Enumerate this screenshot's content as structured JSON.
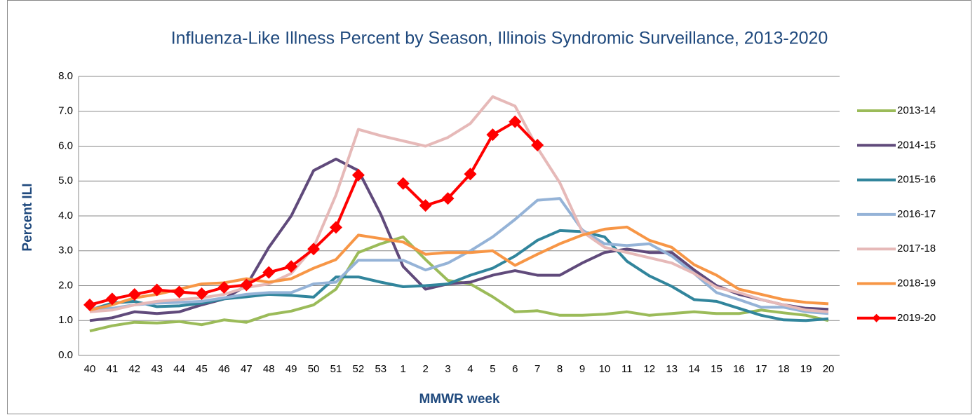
{
  "chart_data": {
    "type": "line",
    "title": "Influenza-Like Illness Percent by Season, Illinois Syndromic Surveillance, 2013-2020",
    "x_label": "MMWR week",
    "y_label": "Percent ILI",
    "categories": [
      "40",
      "41",
      "42",
      "43",
      "44",
      "45",
      "46",
      "47",
      "48",
      "49",
      "50",
      "51",
      "52",
      "53",
      "1",
      "2",
      "3",
      "4",
      "5",
      "6",
      "7",
      "8",
      "9",
      "10",
      "11",
      "12",
      "13",
      "14",
      "15",
      "16",
      "17",
      "18",
      "19",
      "20"
    ],
    "ylim": [
      0,
      8
    ],
    "yticks": [
      {
        "value": 0,
        "label": "0.0"
      },
      {
        "value": 1,
        "label": "1.0"
      },
      {
        "value": 2,
        "label": "2.0"
      },
      {
        "value": 3,
        "label": "3.0"
      },
      {
        "value": 4,
        "label": "4.0"
      },
      {
        "value": 5,
        "label": "5.0"
      },
      {
        "value": 6,
        "label": "6.0"
      },
      {
        "value": 7,
        "label": "7.0"
      },
      {
        "value": 8,
        "label": "8.0"
      }
    ],
    "grid": true,
    "legend": "right",
    "series": [
      {
        "name": "2013-14",
        "color": "#9bbb59",
        "values": [
          0.7,
          0.85,
          0.95,
          0.93,
          0.97,
          0.88,
          1.02,
          0.95,
          1.17,
          1.27,
          1.45,
          1.9,
          2.95,
          3.2,
          3.4,
          2.75,
          2.15,
          2.05,
          1.68,
          1.25,
          1.28,
          1.15,
          1.15,
          1.18,
          1.25,
          1.15,
          1.2,
          1.25,
          1.2,
          1.2,
          1.3,
          1.22,
          1.15,
          1.0
        ]
      },
      {
        "name": "2014-15",
        "color": "#604a7b",
        "values": [
          1.0,
          1.08,
          1.25,
          1.2,
          1.25,
          1.45,
          1.62,
          2.0,
          3.1,
          4.0,
          5.3,
          5.63,
          5.3,
          4.05,
          2.55,
          1.9,
          2.05,
          2.1,
          2.3,
          2.43,
          2.3,
          2.3,
          2.65,
          2.95,
          3.05,
          2.95,
          2.95,
          2.45,
          2.0,
          1.75,
          1.6,
          1.45,
          1.35,
          1.32
        ]
      },
      {
        "name": "2015-16",
        "color": "#31859c",
        "values": [
          1.3,
          1.5,
          1.55,
          1.4,
          1.42,
          1.5,
          1.62,
          1.68,
          1.75,
          1.72,
          1.67,
          2.25,
          2.25,
          2.1,
          1.97,
          2.0,
          2.05,
          2.3,
          2.5,
          2.85,
          3.3,
          3.58,
          3.55,
          3.4,
          2.7,
          2.28,
          1.98,
          1.6,
          1.55,
          1.35,
          1.15,
          1.02,
          1.0,
          1.05
        ]
      },
      {
        "name": "2016-17",
        "color": "#95b3d7",
        "values": [
          1.35,
          1.35,
          1.45,
          1.5,
          1.52,
          1.55,
          1.65,
          1.75,
          1.8,
          1.8,
          2.05,
          2.1,
          2.73,
          2.73,
          2.73,
          2.45,
          2.65,
          3.0,
          3.4,
          3.9,
          4.45,
          4.5,
          3.6,
          3.2,
          3.15,
          3.2,
          2.85,
          2.35,
          1.8,
          1.6,
          1.38,
          1.38,
          1.25,
          1.2
        ]
      },
      {
        "name": "2017-18",
        "color": "#e6b9b8",
        "values": [
          1.25,
          1.3,
          1.45,
          1.55,
          1.6,
          1.65,
          1.75,
          1.95,
          2.05,
          2.35,
          3.1,
          4.6,
          6.48,
          6.3,
          6.15,
          6.0,
          6.25,
          6.65,
          7.42,
          7.15,
          5.95,
          4.95,
          3.55,
          3.1,
          2.95,
          2.8,
          2.65,
          2.35,
          1.95,
          1.8,
          1.6,
          1.45,
          1.3,
          1.25
        ]
      },
      {
        "name": "2018-19",
        "color": "#f79646",
        "values": [
          1.3,
          1.45,
          1.65,
          1.75,
          1.9,
          2.05,
          2.08,
          2.2,
          2.1,
          2.2,
          2.5,
          2.75,
          3.45,
          3.35,
          3.25,
          2.9,
          2.95,
          2.95,
          3.0,
          2.58,
          2.9,
          3.2,
          3.45,
          3.62,
          3.68,
          3.3,
          3.1,
          2.6,
          2.3,
          1.9,
          1.75,
          1.6,
          1.52,
          1.48
        ]
      },
      {
        "name": "2019-20",
        "color": "#ff0000",
        "markers": true,
        "values": [
          1.45,
          1.62,
          1.75,
          1.88,
          1.82,
          1.77,
          1.95,
          2.02,
          2.38,
          2.55,
          3.05,
          3.67,
          5.17,
          null,
          4.93,
          4.3,
          4.5,
          5.2,
          6.33,
          6.7,
          6.03,
          null,
          null,
          null,
          null,
          null,
          null,
          null,
          null,
          null,
          null,
          null,
          null,
          null
        ]
      }
    ]
  }
}
